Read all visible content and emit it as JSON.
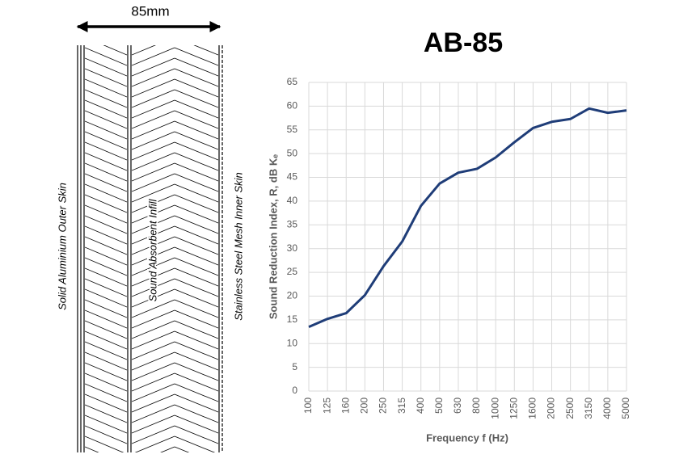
{
  "diagram": {
    "dimension": "85mm",
    "labels": [
      "Solid Aluminium Outer Skin",
      "Sound Absorbent Infill",
      "Stainless Steel Mesh Inner Skin"
    ]
  },
  "chart_data": {
    "type": "line",
    "title": "AB-85",
    "xlabel": "Frequency f (Hz)",
    "ylabel": "Sound Reduction Index, R, dB Kₑ",
    "categories": [
      "100",
      "125",
      "160",
      "200",
      "250",
      "315",
      "400",
      "500",
      "630",
      "800",
      "1000",
      "1250",
      "1600",
      "2000",
      "2500",
      "3150",
      "4000",
      "5000"
    ],
    "series": [
      {
        "name": "AB-85",
        "color": "#1f3d78",
        "values": [
          13.5,
          15.2,
          16.4,
          20.2,
          26.3,
          31.5,
          39.0,
          43.7,
          46.0,
          46.8,
          49.2,
          52.4,
          55.4,
          56.7,
          57.3,
          59.5,
          58.6,
          59.1
        ]
      }
    ],
    "ylim": [
      0,
      65
    ],
    "yticks": [
      0,
      5,
      10,
      15,
      20,
      25,
      30,
      35,
      40,
      45,
      50,
      55,
      60,
      65
    ],
    "grid": true,
    "legend": false
  }
}
